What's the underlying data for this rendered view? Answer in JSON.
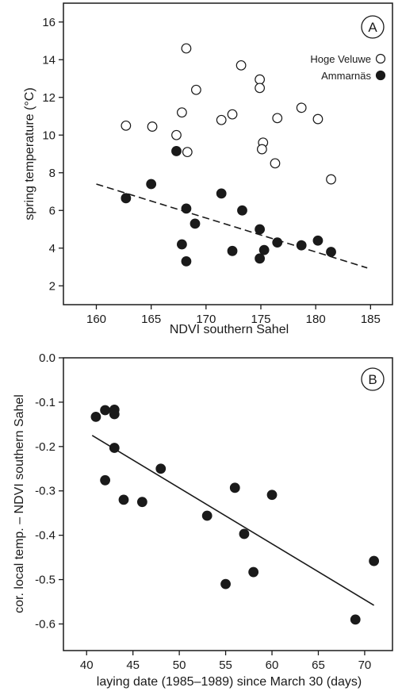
{
  "chart_data": [
    {
      "type": "scatter",
      "panel_label": "A",
      "xlabel": "NDVI southern Sahel",
      "ylabel": "spring temperature (°C)",
      "xlim": [
        157,
        187
      ],
      "ylim": [
        1,
        17
      ],
      "xticks": [
        160,
        165,
        170,
        175,
        180,
        185
      ],
      "yticks": [
        2,
        4,
        6,
        8,
        10,
        12,
        14,
        16
      ],
      "legend_position": "top-right",
      "series": [
        {
          "name": "Hoge Veluwe",
          "marker": "open-circle",
          "points": [
            [
              162.7,
              10.5
            ],
            [
              165.1,
              10.45
            ],
            [
              167.3,
              10.0
            ],
            [
              167.8,
              11.2
            ],
            [
              168.2,
              14.6
            ],
            [
              168.3,
              9.1
            ],
            [
              169.1,
              12.4
            ],
            [
              171.4,
              10.8
            ],
            [
              172.4,
              11.1
            ],
            [
              173.2,
              13.7
            ],
            [
              174.9,
              12.95
            ],
            [
              174.9,
              12.5
            ],
            [
              175.2,
              9.6
            ],
            [
              175.1,
              9.25
            ],
            [
              176.3,
              8.5
            ],
            [
              176.5,
              10.9
            ],
            [
              178.7,
              11.45
            ],
            [
              180.2,
              10.85
            ],
            [
              181.4,
              7.65
            ]
          ]
        },
        {
          "name": "Ammarnäs",
          "marker": "filled-circle",
          "points": [
            [
              162.7,
              6.65
            ],
            [
              165.0,
              7.4
            ],
            [
              167.3,
              9.15
            ],
            [
              167.8,
              4.2
            ],
            [
              168.2,
              6.1
            ],
            [
              168.2,
              3.3
            ],
            [
              169.0,
              5.3
            ],
            [
              171.4,
              6.9
            ],
            [
              172.4,
              3.85
            ],
            [
              173.3,
              6.0
            ],
            [
              174.9,
              5.0
            ],
            [
              174.9,
              3.45
            ],
            [
              175.3,
              3.9
            ],
            [
              176.5,
              4.3
            ],
            [
              178.7,
              4.15
            ],
            [
              180.2,
              4.4
            ],
            [
              181.4,
              3.8
            ]
          ]
        }
      ],
      "regression_line": {
        "style": "dashed",
        "from": [
          160,
          7.4
        ],
        "to": [
          184.7,
          2.95
        ]
      }
    },
    {
      "type": "scatter",
      "panel_label": "B",
      "xlabel": "laying date (1985–1989) since March 30 (days)",
      "ylabel": "cor. local temp. – NDVI southern Sahel",
      "xlim": [
        37.5,
        73
      ],
      "ylim": [
        -0.66,
        0.0
      ],
      "xticks": [
        40,
        45,
        50,
        55,
        60,
        65,
        70
      ],
      "yticks": [
        0.0,
        -0.1,
        -0.2,
        -0.3,
        -0.4,
        -0.5,
        -0.6
      ],
      "ytick_labels": [
        "0.0",
        "-0.1",
        "-0.2",
        "-0.3",
        "-0.4",
        "-0.5",
        "-0.6"
      ],
      "series": [
        {
          "marker": "filled-circle",
          "points": [
            [
              41.0,
              -0.133
            ],
            [
              42.0,
              -0.118
            ],
            [
              43.0,
              -0.117
            ],
            [
              43.0,
              -0.127
            ],
            [
              43.0,
              -0.203
            ],
            [
              42.0,
              -0.276
            ],
            [
              44.0,
              -0.32
            ],
            [
              46.0,
              -0.325
            ],
            [
              48.0,
              -0.25
            ],
            [
              53.0,
              -0.356
            ],
            [
              55.0,
              -0.51
            ],
            [
              56.0,
              -0.293
            ],
            [
              57.0,
              -0.397
            ],
            [
              58.0,
              -0.483
            ],
            [
              60.0,
              -0.309
            ],
            [
              69.0,
              -0.59
            ],
            [
              71.0,
              -0.458
            ]
          ]
        }
      ],
      "regression_line": {
        "style": "solid",
        "from": [
          40.6,
          -0.175
        ],
        "to": [
          71.0,
          -0.558
        ]
      }
    }
  ]
}
